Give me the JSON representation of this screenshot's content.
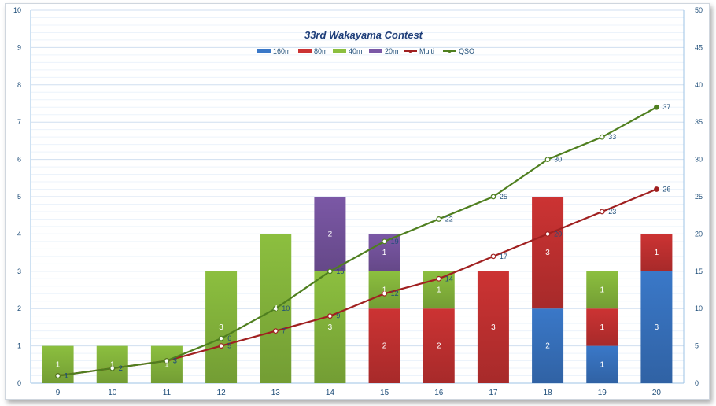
{
  "chart_data": {
    "type": "bar",
    "title": "33rd Wakayama  Contest",
    "categories": [
      "9",
      "10",
      "11",
      "12",
      "13",
      "14",
      "15",
      "16",
      "17",
      "18",
      "19",
      "20"
    ],
    "bar_series": [
      {
        "name": "160m",
        "color": "#3a78c8",
        "values": [
          0,
          0,
          0,
          0,
          0,
          0,
          0,
          0,
          0,
          2,
          1,
          3
        ]
      },
      {
        "name": "80m",
        "color": "#cc3333",
        "values": [
          0,
          0,
          0,
          0,
          0,
          0,
          2,
          2,
          3,
          3,
          1,
          1
        ]
      },
      {
        "name": "40m",
        "color": "#8cbf3f",
        "values": [
          1,
          1,
          1,
          3,
          4,
          3,
          1,
          1,
          0,
          0,
          1,
          0
        ]
      },
      {
        "name": "20m",
        "color": "#7b58a6",
        "values": [
          0,
          0,
          0,
          0,
          0,
          2,
          1,
          0,
          0,
          0,
          0,
          0
        ]
      }
    ],
    "line_series": [
      {
        "name": "Multi",
        "color": "#a02020",
        "axis": "right",
        "values": [
          1,
          2,
          3,
          5,
          7,
          9,
          12,
          14,
          17,
          20,
          23,
          26
        ]
      },
      {
        "name": "QSO",
        "color": "#4f7f1f",
        "axis": "right",
        "values": [
          1,
          2,
          3,
          6,
          10,
          15,
          19,
          22,
          25,
          30,
          33,
          37
        ]
      }
    ],
    "legend_order": [
      "160m",
      "80m",
      "40m",
      "20m",
      "Multi",
      "QSO"
    ],
    "legend_position": "top-center",
    "y_left": {
      "ticks": [
        "0",
        "1",
        "2",
        "3",
        "4",
        "5",
        "6",
        "7",
        "8",
        "9",
        "10"
      ],
      "ylim": [
        0,
        10
      ]
    },
    "y_right": {
      "ticks": [
        "0",
        "5",
        "10",
        "15",
        "20",
        "25",
        "30",
        "35",
        "40",
        "45",
        "50"
      ],
      "ylim": [
        0,
        50
      ]
    },
    "grid": true
  }
}
